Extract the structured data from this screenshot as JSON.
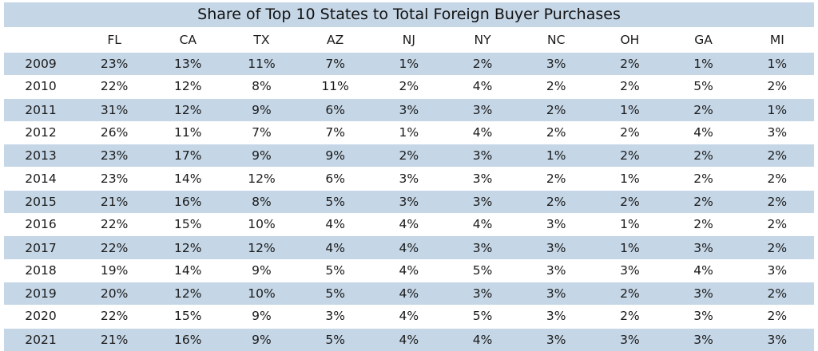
{
  "title": "Share of Top 10 States to Total Foreign Buyer Purchases",
  "columns": [
    "FL",
    "CA",
    "TX",
    "AZ",
    "NJ",
    "NY",
    "NC",
    "OH",
    "GA",
    "MI"
  ],
  "rows": [
    {
      "year": "2009",
      "values": [
        "23%",
        "13%",
        "11%",
        "7%",
        "1%",
        "2%",
        "3%",
        "2%",
        "1%",
        "1%"
      ]
    },
    {
      "year": "2010",
      "values": [
        "22%",
        "12%",
        "8%",
        "11%",
        "2%",
        "4%",
        "2%",
        "2%",
        "5%",
        "2%"
      ]
    },
    {
      "year": "2011",
      "values": [
        "31%",
        "12%",
        "9%",
        "6%",
        "3%",
        "3%",
        "2%",
        "1%",
        "2%",
        "1%"
      ]
    },
    {
      "year": "2012",
      "values": [
        "26%",
        "11%",
        "7%",
        "7%",
        "1%",
        "4%",
        "2%",
        "2%",
        "4%",
        "3%"
      ]
    },
    {
      "year": "2013",
      "values": [
        "23%",
        "17%",
        "9%",
        "9%",
        "2%",
        "3%",
        "1%",
        "2%",
        "2%",
        "2%"
      ]
    },
    {
      "year": "2014",
      "values": [
        "23%",
        "14%",
        "12%",
        "6%",
        "3%",
        "3%",
        "2%",
        "1%",
        "2%",
        "2%"
      ]
    },
    {
      "year": "2015",
      "values": [
        "21%",
        "16%",
        "8%",
        "5%",
        "3%",
        "3%",
        "2%",
        "2%",
        "2%",
        "2%"
      ]
    },
    {
      "year": "2016",
      "values": [
        "22%",
        "15%",
        "10%",
        "4%",
        "4%",
        "4%",
        "3%",
        "1%",
        "2%",
        "2%"
      ]
    },
    {
      "year": "2017",
      "values": [
        "22%",
        "12%",
        "12%",
        "4%",
        "4%",
        "3%",
        "3%",
        "1%",
        "3%",
        "2%"
      ]
    },
    {
      "year": "2018",
      "values": [
        "19%",
        "14%",
        "9%",
        "5%",
        "4%",
        "5%",
        "3%",
        "3%",
        "4%",
        "3%"
      ]
    },
    {
      "year": "2019",
      "values": [
        "20%",
        "12%",
        "10%",
        "5%",
        "4%",
        "3%",
        "3%",
        "2%",
        "3%",
        "2%"
      ]
    },
    {
      "year": "2020",
      "values": [
        "22%",
        "15%",
        "9%",
        "3%",
        "4%",
        "5%",
        "3%",
        "2%",
        "3%",
        "2%"
      ]
    },
    {
      "year": "2021",
      "values": [
        "21%",
        "16%",
        "9%",
        "5%",
        "4%",
        "4%",
        "3%",
        "3%",
        "3%",
        "3%"
      ]
    }
  ],
  "colors": {
    "band": "#c5d6e6",
    "background": "#ffffff",
    "text": "#111111"
  },
  "chart_data": {
    "type": "table",
    "title": "Share of Top 10 States to Total Foreign Buyer Purchases",
    "columns": [
      "FL",
      "CA",
      "TX",
      "AZ",
      "NJ",
      "NY",
      "NC",
      "OH",
      "GA",
      "MI"
    ],
    "index": [
      "2009",
      "2010",
      "2011",
      "2012",
      "2013",
      "2014",
      "2015",
      "2016",
      "2017",
      "2018",
      "2019",
      "2020",
      "2021"
    ]
  }
}
